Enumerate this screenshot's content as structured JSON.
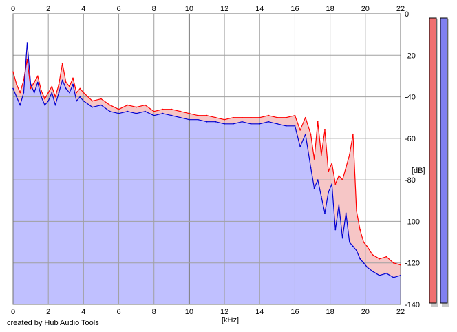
{
  "app": {
    "credit": "created by Hub Audio Tools"
  },
  "axes": {
    "x_unit": "[kHz]",
    "y_unit": "[dB]"
  },
  "colors": {
    "background": "#ffffff",
    "grid": "#a0a0a0",
    "plot_border": "#707070",
    "fill": "#c0c0ff",
    "fill_between": "#f6c6c6",
    "left_channel": "#ff0000",
    "right_channel": "#0000d0",
    "meter_left": "#f07070",
    "meter_right": "#8080f0"
  },
  "meters": [
    {
      "channel": "left",
      "color": "#f07070"
    },
    {
      "channel": "right",
      "color": "#8080f0"
    }
  ],
  "chart_data": {
    "type": "area",
    "title": "",
    "xlabel": "[kHz]",
    "ylabel": "[dB]",
    "xlim": [
      0,
      22
    ],
    "ylim": [
      -140,
      0
    ],
    "x_ticks": [
      0,
      2,
      4,
      6,
      8,
      10,
      12,
      14,
      16,
      18,
      20,
      22
    ],
    "y_ticks": [
      0,
      -20,
      -40,
      -60,
      -80,
      -100,
      -120,
      -140
    ],
    "grid": true,
    "legend": "none",
    "series": [
      {
        "channel": "left",
        "color": "#ff0000",
        "x": [
          0,
          0.2,
          0.4,
          0.6,
          0.8,
          1.0,
          1.2,
          1.4,
          1.6,
          1.8,
          2.0,
          2.2,
          2.4,
          2.6,
          2.8,
          3.0,
          3.2,
          3.4,
          3.6,
          3.8,
          4.0,
          4.5,
          5.0,
          5.5,
          6.0,
          6.5,
          7.0,
          7.5,
          8.0,
          8.5,
          9.0,
          9.5,
          10.0,
          10.5,
          11.0,
          11.5,
          12.0,
          12.5,
          13.0,
          13.5,
          14.0,
          14.5,
          15.0,
          15.5,
          16.0,
          16.3,
          16.6,
          16.9,
          17.1,
          17.3,
          17.5,
          17.7,
          17.9,
          18.1,
          18.3,
          18.5,
          18.7,
          18.9,
          19.1,
          19.3,
          19.5,
          19.7,
          19.9,
          20.1,
          20.4,
          20.8,
          21.2,
          21.6,
          22.0
        ],
        "values": [
          -28,
          -34,
          -38,
          -32,
          -22,
          -36,
          -33,
          -30,
          -37,
          -41,
          -38,
          -35,
          -40,
          -34,
          -24,
          -33,
          -35,
          -31,
          -38,
          -36,
          -38,
          -42,
          -41,
          -44,
          -46,
          -44,
          -45,
          -44,
          -47,
          -46,
          -46,
          -47,
          -48,
          -49,
          -49,
          -50,
          -51,
          -50,
          -50,
          -50,
          -50,
          -49,
          -50,
          -50,
          -49,
          -56,
          -50,
          -58,
          -70,
          -52,
          -68,
          -56,
          -76,
          -72,
          -82,
          -78,
          -80,
          -74,
          -68,
          -58,
          -95,
          -104,
          -110,
          -112,
          -116,
          -118,
          -117,
          -120,
          -121
        ]
      },
      {
        "channel": "right",
        "color": "#0000d0",
        "x": [
          0,
          0.2,
          0.4,
          0.6,
          0.8,
          1.0,
          1.2,
          1.4,
          1.6,
          1.8,
          2.0,
          2.2,
          2.4,
          2.6,
          2.8,
          3.0,
          3.2,
          3.4,
          3.6,
          3.8,
          4.0,
          4.5,
          5.0,
          5.5,
          6.0,
          6.5,
          7.0,
          7.5,
          8.0,
          8.5,
          9.0,
          9.5,
          10.0,
          10.5,
          11.0,
          11.5,
          12.0,
          12.5,
          13.0,
          13.5,
          14.0,
          14.5,
          15.0,
          15.5,
          16.0,
          16.3,
          16.6,
          16.9,
          17.1,
          17.3,
          17.5,
          17.7,
          17.9,
          18.1,
          18.3,
          18.5,
          18.7,
          18.9,
          19.1,
          19.3,
          19.5,
          19.7,
          19.9,
          20.1,
          20.4,
          20.8,
          21.2,
          21.6,
          22.0
        ],
        "values": [
          -36,
          -40,
          -44,
          -38,
          -14,
          -34,
          -38,
          -33,
          -40,
          -44,
          -42,
          -38,
          -44,
          -38,
          -32,
          -36,
          -38,
          -34,
          -42,
          -40,
          -42,
          -45,
          -44,
          -47,
          -48,
          -47,
          -48,
          -47,
          -49,
          -48,
          -49,
          -50,
          -51,
          -51,
          -52,
          -52,
          -53,
          -53,
          -52,
          -53,
          -53,
          -52,
          -53,
          -54,
          -54,
          -64,
          -58,
          -74,
          -84,
          -80,
          -88,
          -96,
          -86,
          -82,
          -104,
          -92,
          -108,
          -96,
          -110,
          -112,
          -114,
          -118,
          -120,
          -122,
          -124,
          -126,
          -125,
          -127,
          -126
        ]
      }
    ]
  }
}
